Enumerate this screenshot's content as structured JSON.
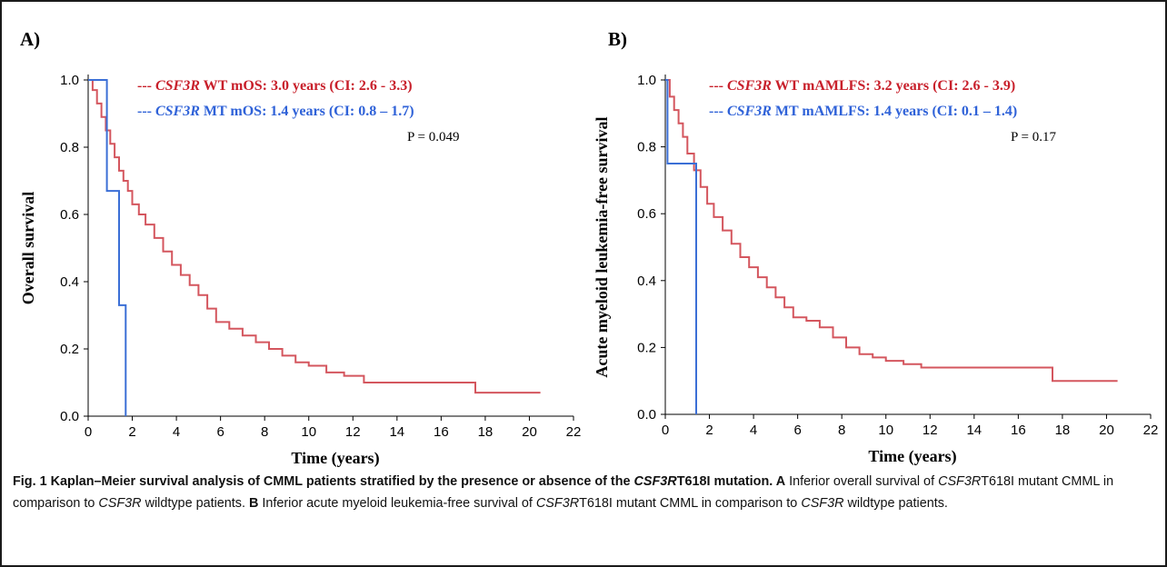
{
  "chart_data": [
    {
      "panel_label": "A)",
      "type": "line",
      "step": true,
      "xlabel": "Time (years)",
      "ylabel": "Overall survival",
      "xlim": [
        0,
        22
      ],
      "ylim": [
        0,
        1
      ],
      "xticks": [
        0,
        2,
        4,
        6,
        8,
        10,
        12,
        14,
        16,
        18,
        20,
        22
      ],
      "yticks": [
        "0.0",
        "0.2",
        "0.4",
        "0.6",
        "0.8",
        "1.0"
      ],
      "legend": [
        {
          "prefix": "--- ",
          "gene": "CSF3R",
          "text": " WT mOS: 3.0 years (CI: 2.6 - 3.3)",
          "color": "#c8202b"
        },
        {
          "prefix": "--- ",
          "gene": "CSF3R",
          "text": " MT mOS: 1.4 years (CI: 0.8 – 1.7)",
          "color": "#2f62d8"
        }
      ],
      "annotation": "P = 0.049",
      "series": [
        {
          "color": "#d4565e",
          "x": [
            0,
            0.2,
            0.4,
            0.6,
            0.8,
            1.0,
            1.2,
            1.4,
            1.6,
            1.8,
            2.0,
            2.3,
            2.6,
            3.0,
            3.4,
            3.8,
            4.2,
            4.6,
            5.0,
            5.4,
            5.8,
            6.4,
            7.0,
            7.6,
            8.2,
            8.8,
            9.4,
            10.0,
            10.8,
            11.6,
            12.5,
            14.0,
            16.0,
            17.5,
            17.55,
            20.5
          ],
          "y": [
            1.0,
            0.97,
            0.93,
            0.89,
            0.85,
            0.81,
            0.77,
            0.73,
            0.7,
            0.67,
            0.63,
            0.6,
            0.57,
            0.53,
            0.49,
            0.45,
            0.42,
            0.39,
            0.36,
            0.32,
            0.28,
            0.26,
            0.24,
            0.22,
            0.2,
            0.18,
            0.16,
            0.15,
            0.13,
            0.12,
            0.1,
            0.1,
            0.1,
            0.1,
            0.07,
            0.07
          ]
        },
        {
          "color": "#3b6fd6",
          "x": [
            0,
            0.85,
            0.85,
            1.4,
            1.4,
            1.7,
            1.7
          ],
          "y": [
            1.0,
            1.0,
            0.67,
            0.67,
            0.33,
            0.33,
            0.0
          ]
        }
      ]
    },
    {
      "panel_label": "B)",
      "type": "line",
      "step": true,
      "xlabel": "Time (years)",
      "ylabel": "Acute myeloid leukemia-free survival",
      "xlim": [
        0,
        22
      ],
      "ylim": [
        0,
        1
      ],
      "xticks": [
        0,
        2,
        4,
        6,
        8,
        10,
        12,
        14,
        16,
        18,
        20,
        22
      ],
      "yticks": [
        "0.0",
        "0.2",
        "0.4",
        "0.6",
        "0.8",
        "1.0"
      ],
      "legend": [
        {
          "prefix": "--- ",
          "gene": "CSF3R",
          "text": " WT mAMLFS: 3.2 years (CI: 2.6 - 3.9)",
          "color": "#c8202b"
        },
        {
          "prefix": "--- ",
          "gene": "CSF3R",
          "text": " MT mAMLFS: 1.4 years (CI: 0.1 – 1.4)",
          "color": "#2f62d8"
        }
      ],
      "annotation": "P = 0.17",
      "series": [
        {
          "color": "#d4565e",
          "x": [
            0,
            0.2,
            0.4,
            0.6,
            0.8,
            1.0,
            1.3,
            1.6,
            1.9,
            2.2,
            2.6,
            3.0,
            3.4,
            3.8,
            4.2,
            4.6,
            5.0,
            5.4,
            5.8,
            6.4,
            7.0,
            7.6,
            8.2,
            8.8,
            9.4,
            10.0,
            10.8,
            11.6,
            12.5,
            14.0,
            16.0,
            17.5,
            17.55,
            20.5
          ],
          "y": [
            1.0,
            0.95,
            0.91,
            0.87,
            0.83,
            0.78,
            0.73,
            0.68,
            0.63,
            0.59,
            0.55,
            0.51,
            0.47,
            0.44,
            0.41,
            0.38,
            0.35,
            0.32,
            0.29,
            0.28,
            0.26,
            0.23,
            0.2,
            0.18,
            0.17,
            0.16,
            0.15,
            0.14,
            0.14,
            0.14,
            0.14,
            0.14,
            0.1,
            0.1
          ]
        },
        {
          "color": "#3b6fd6",
          "x": [
            0,
            0.1,
            0.1,
            1.4,
            1.4
          ],
          "y": [
            1.0,
            1.0,
            0.75,
            0.75,
            0.0
          ]
        }
      ]
    }
  ],
  "caption": {
    "lead_1": "Fig. 1 Kaplan–Meier survival analysis of CMML patients stratified by the presence or absence of the ",
    "lead_gene": "CSF3R",
    "lead_2": "T618I mutation.",
    "a_label": " A",
    "a_1": " Inferior overall survival of ",
    "a_gene": "CSF3R",
    "a_2": "T618I mutant CMML in comparison to ",
    "a_gene2": "CSF3R",
    "a_3": " wildtype patients. ",
    "b_label": "B",
    "b_1": " Inferior acute myeloid leukemia-free survival of ",
    "b_gene": "CSF3R",
    "b_2": "T618I mutant CMML in comparison to ",
    "b_gene2": "CSF3R",
    "b_3": " wildtype patients."
  }
}
